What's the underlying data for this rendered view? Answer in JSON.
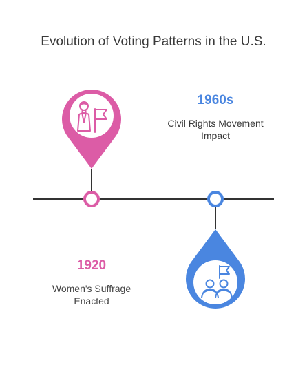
{
  "title": "Evolution of Voting Patterns in the U.S.",
  "colors": {
    "pink": "#dc5ca6",
    "blue": "#4a86e0",
    "line": "#333333",
    "text": "#3a3a3a"
  },
  "events": [
    {
      "year": "1920",
      "description_line1": "Women's Suffrage",
      "description_line2": "Enacted",
      "icon": "woman-with-flag-icon",
      "color": "#dc5ca6",
      "marker_position": "above"
    },
    {
      "year": "1960s",
      "description_line1": "Civil Rights Movement",
      "description_line2": "Impact",
      "icon": "group-with-flag-icon",
      "color": "#4a86e0",
      "marker_position": "below"
    }
  ]
}
